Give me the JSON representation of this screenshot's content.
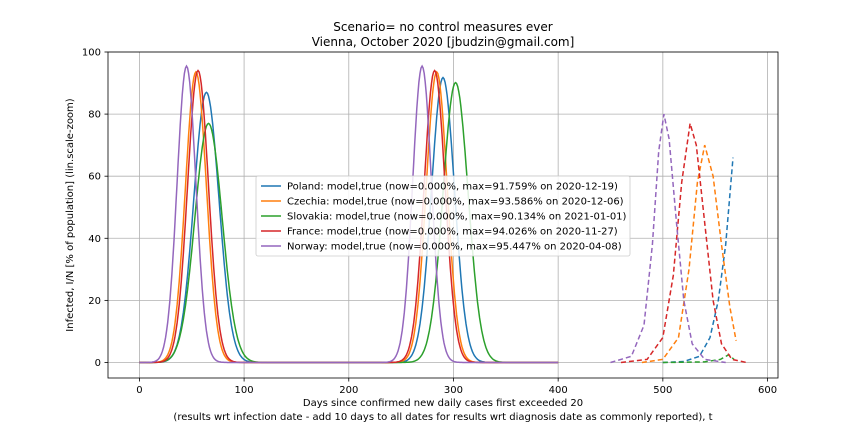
{
  "chart_data": {
    "type": "line",
    "title": "Scenario= no control measures ever",
    "subtitle": "Vienna, October 2020 [jbudzin@gmail.com]",
    "xlabel": "Days since confirmed new daily cases first exceeded 20",
    "xlabel_note": "(results wrt infection date - add 10 days to all dates for results wrt diagnosis date as commonly reported), t",
    "ylabel": "Infected, I/N [% of population] (lin.scale-zoom)",
    "xlim": [
      -30,
      610
    ],
    "ylim": [
      -5,
      100
    ],
    "xticks": [
      0,
      100,
      200,
      300,
      400,
      500,
      600
    ],
    "yticks": [
      0,
      20,
      40,
      60,
      80,
      100
    ],
    "grid": true,
    "legend_position": "center",
    "series": [
      {
        "name": "Poland: model,true (now=0.000%, max=91.759% on 2020-12-19)",
        "color": "#1f77b4",
        "peaks": [
          {
            "center": 64,
            "sigma": 12,
            "height": 87
          },
          {
            "center": 290,
            "sigma": 11,
            "height": 91.76
          }
        ],
        "dashed_points": [
          [
            500,
            0
          ],
          [
            520,
            0.3
          ],
          [
            535,
            2
          ],
          [
            545,
            8
          ],
          [
            553,
            20
          ],
          [
            560,
            38
          ],
          [
            567,
            66
          ]
        ]
      },
      {
        "name": "Czechia: model,true (now=0.000%, max=93.586% on 2020-12-06)",
        "color": "#ff7f0e",
        "peaks": [
          {
            "center": 54,
            "sigma": 10,
            "height": 93.59
          },
          {
            "center": 284,
            "sigma": 10,
            "height": 93.59
          }
        ],
        "dashed_points": [
          [
            480,
            0
          ],
          [
            500,
            1
          ],
          [
            515,
            8
          ],
          [
            525,
            30
          ],
          [
            533,
            58
          ],
          [
            540,
            70
          ],
          [
            548,
            60
          ],
          [
            556,
            38
          ],
          [
            564,
            18
          ],
          [
            570,
            7
          ]
        ]
      },
      {
        "name": "Slovakia: model,true (now=0.000%, max=90.134% on 2021-01-01)",
        "color": "#2ca02c",
        "peaks": [
          {
            "center": 66,
            "sigma": 13,
            "height": 77
          },
          {
            "center": 302,
            "sigma": 12,
            "height": 90.13
          }
        ],
        "dashed_points": [
          [
            500,
            0
          ],
          [
            540,
            0.2
          ],
          [
            555,
            1
          ],
          [
            563,
            2.5
          ],
          [
            568,
            1
          ]
        ]
      },
      {
        "name": "France: model,true (now=0.000%, max=94.026% on 2020-11-27)",
        "color": "#d62728",
        "peaks": [
          {
            "center": 56,
            "sigma": 10,
            "height": 94.03
          },
          {
            "center": 282,
            "sigma": 10,
            "height": 94.03
          }
        ],
        "dashed_points": [
          [
            460,
            0
          ],
          [
            485,
            1
          ],
          [
            500,
            8
          ],
          [
            510,
            28
          ],
          [
            518,
            58
          ],
          [
            526,
            77
          ],
          [
            532,
            70
          ],
          [
            540,
            45
          ],
          [
            548,
            20
          ],
          [
            556,
            6
          ],
          [
            566,
            1
          ],
          [
            580,
            0
          ]
        ]
      },
      {
        "name": "Norway: model,true (now=0.000%, max=95.447% on 2020-04-08)",
        "color": "#9467bd",
        "peaks": [
          {
            "center": 45,
            "sigma": 9,
            "height": 95.45
          },
          {
            "center": 270,
            "sigma": 9,
            "height": 95.45
          }
        ],
        "dashed_points": [
          [
            450,
            0
          ],
          [
            470,
            2
          ],
          [
            482,
            12
          ],
          [
            490,
            38
          ],
          [
            496,
            68
          ],
          [
            501,
            80
          ],
          [
            506,
            72
          ],
          [
            513,
            45
          ],
          [
            520,
            20
          ],
          [
            528,
            6
          ],
          [
            540,
            1
          ],
          [
            560,
            0
          ]
        ]
      }
    ]
  }
}
